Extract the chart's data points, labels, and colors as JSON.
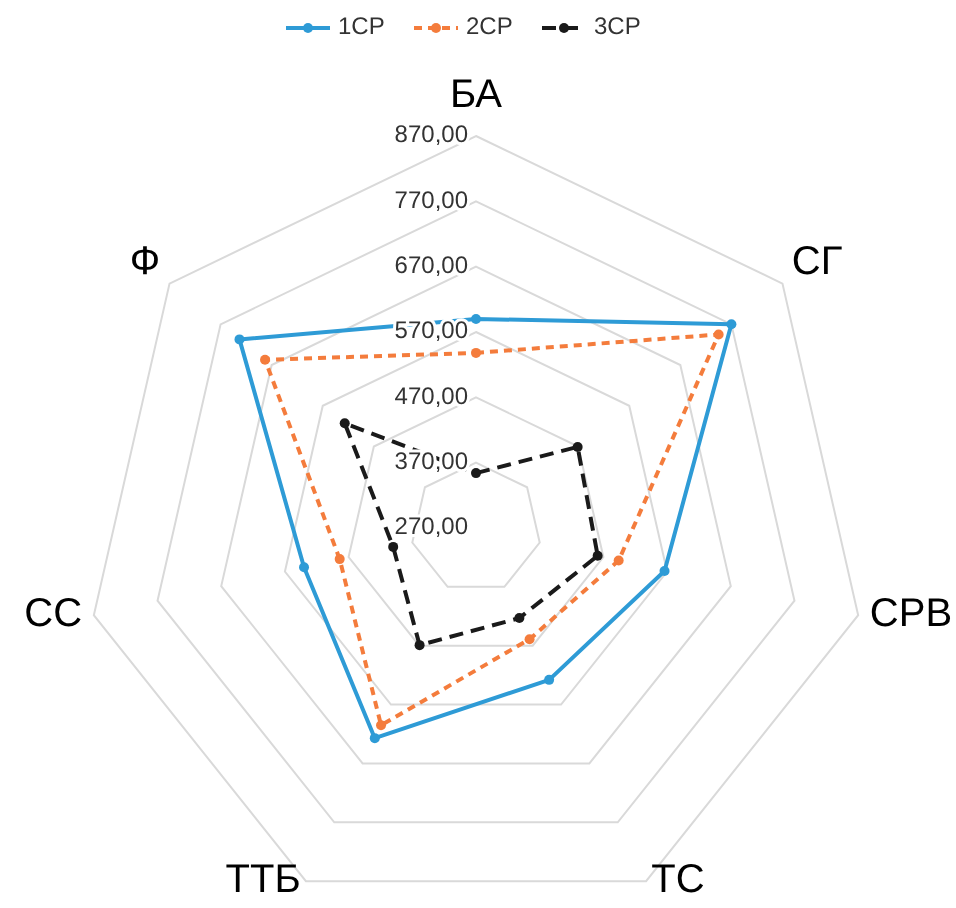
{
  "chart_data": {
    "type": "radar",
    "categories": [
      "БА",
      "СГ",
      "СРВ",
      "ТС",
      "ТТБ",
      "СС",
      "Ф"
    ],
    "ylim": [
      270,
      870
    ],
    "yticks": [
      {
        "value": 270,
        "label": "270,00"
      },
      {
        "value": 370,
        "label": "370,00"
      },
      {
        "value": 470,
        "label": "470,00"
      },
      {
        "value": 570,
        "label": "570,00"
      },
      {
        "value": 670,
        "label": "670,00"
      },
      {
        "value": 770,
        "label": "770,00"
      },
      {
        "value": 870,
        "label": "870,00"
      }
    ],
    "grid": true,
    "legend": "top",
    "marker": "circle",
    "series": [
      {
        "name": "1СР",
        "color": "#2e9bd6",
        "line_style": "solid",
        "values": [
          590,
          770,
          566,
          528,
          627,
          540,
          733
        ]
      },
      {
        "name": "2СР",
        "color": "#f47c3c",
        "line_style": "dashed",
        "values": [
          538,
          745,
          494,
          459,
          605,
          484,
          683
        ]
      },
      {
        "name": "3СР",
        "color": "#1a1a1a",
        "line_style": "dashed",
        "values": [
          354,
          469,
          461,
          423,
          469,
          400,
          527
        ]
      }
    ]
  }
}
